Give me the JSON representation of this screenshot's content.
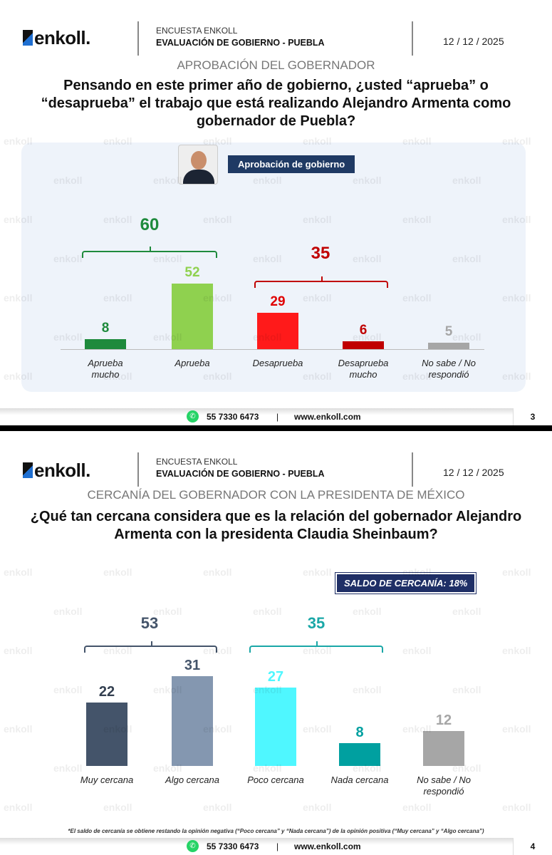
{
  "header": {
    "logo_text": "enkoll.",
    "survey_label": "ENCUESTA ENKOLL",
    "survey_title": "EVALUACIÓN DE GOBIERNO - PUEBLA",
    "date": "12 / 12 / 2025"
  },
  "footer": {
    "phone": "55 7330 6473",
    "separator": "|",
    "website": "www.enkoll.com",
    "whatsapp_icon": "whatsapp-icon"
  },
  "slides": [
    {
      "page": "3",
      "section": "APROBACIÓN DEL GOBERNADOR",
      "question": "Pensando en este primer año de gobierno, ¿usted “aprueba” o “desaprueba” el trabajo que está realizando Alejandro Armenta como gobernador de Puebla?",
      "tag": "Aprobación de gobierno",
      "groups": [
        {
          "total": "60",
          "color": "#1e8a3c"
        },
        {
          "total": "35",
          "color": "#c00000"
        }
      ]
    },
    {
      "page": "4",
      "section": "CERCANÍA DEL GOBERNADOR CON LA PRESIDENTA DE MÉXICO",
      "question": "¿Qué tan cercana considera que es la relación del gobernador Alejandro Armenta con la presidenta Claudia Sheinbaum?",
      "saldo": "SALDO DE CERCANÍA: 18%",
      "note": "*El saldo de cercanía se obtiene restando la opinión negativa (“Poco cercana” y “Nada cercana”) de la opinión positiva (“Muy cercana” y “Algo cercana”)",
      "groups": [
        {
          "total": "53",
          "color": "#44546a"
        },
        {
          "total": "35",
          "color": "#1aa7a7"
        }
      ]
    }
  ],
  "chart_data": [
    {
      "type": "bar",
      "title": "Aprobación de gobierno",
      "categories": [
        "Aprueba mucho",
        "Aprueba",
        "Desaprueba",
        "Desaprueba mucho",
        "No sabe / No respondió"
      ],
      "values": [
        8,
        52,
        29,
        6,
        5
      ],
      "colors": [
        "#1e8a3c",
        "#8fd14f",
        "#ff1a1a",
        "#c00000",
        "#a6a6a6"
      ],
      "value_colors": [
        "#1e8a3c",
        "#8fd14f",
        "#e00000",
        "#c00000",
        "#a6a6a6"
      ],
      "ylim": [
        0,
        60
      ],
      "grid": false
    },
    {
      "type": "bar",
      "title": "",
      "categories": [
        "Muy cercana",
        "Algo cercana",
        "Poco cercana",
        "Nada cercana",
        "No sabe / No respondió"
      ],
      "values": [
        22,
        31,
        27,
        8,
        12
      ],
      "colors": [
        "#44546a",
        "#8497b0",
        "#4ff7ff",
        "#00a0a0",
        "#a6a6a6"
      ],
      "value_colors": [
        "#333f50",
        "#44546a",
        "#4ff7ff",
        "#00a0a0",
        "#a6a6a6"
      ],
      "ylim": [
        0,
        35
      ],
      "grid": false
    }
  ]
}
